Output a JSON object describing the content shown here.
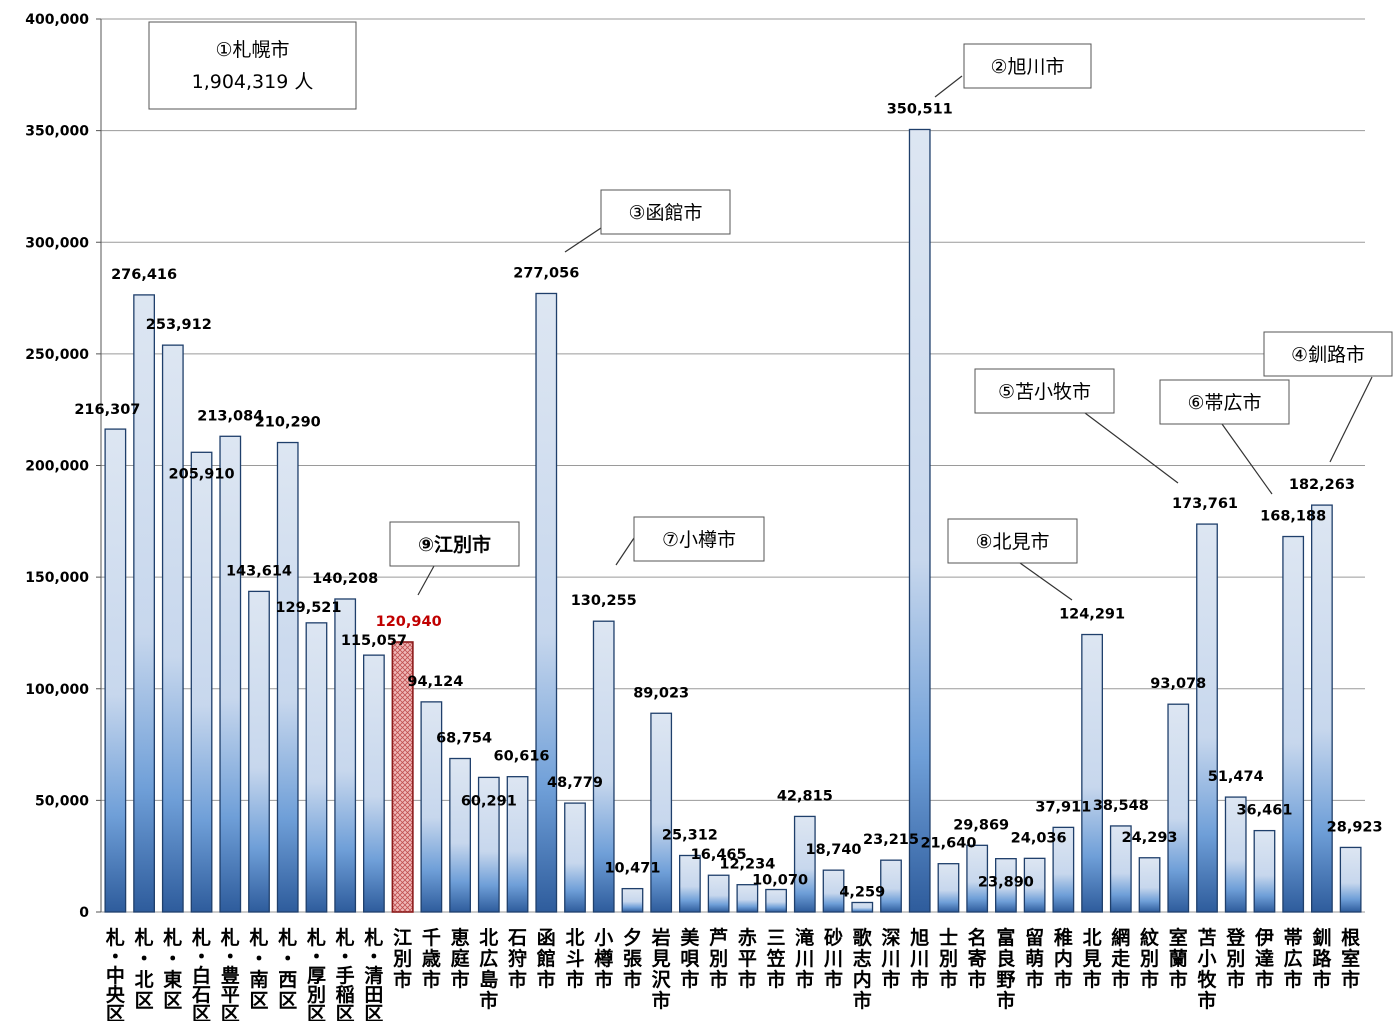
{
  "chart_data": {
    "type": "bar",
    "ylim": [
      0,
      400000
    ],
    "yticks": [
      "0",
      "50,000",
      "100,000",
      "150,000",
      "200,000",
      "250,000",
      "300,000",
      "350,000",
      "400,000"
    ],
    "grid": true,
    "colors": {
      "bar_top": "#dde6f2",
      "bar_bottom": "#2e5c9c",
      "bar_stroke": "#1f3f6b",
      "highlight_fill": "#e7a3a3",
      "highlight_stroke": "#8b1a1a",
      "highlight_label": "#c00000"
    },
    "categories": [
      "札・中央区",
      "札・北区",
      "札・東区",
      "札・白石区",
      "札・豊平区",
      "札・南区",
      "札・西区",
      "札・厚別区",
      "札・手稲区",
      "札・清田区",
      "江別市",
      "千歳市",
      "恵庭市",
      "北広島市",
      "石狩市",
      "函館市",
      "北斗市",
      "小樽市",
      "夕張市",
      "岩見沢市",
      "美唄市",
      "芦別市",
      "赤平市",
      "三笠市",
      "滝川市",
      "砂川市",
      "歌志内市",
      "深川市",
      "旭川市",
      "士別市",
      "名寄市",
      "富良野市",
      "留萌市",
      "稚内市",
      "北見市",
      "網走市",
      "紋別市",
      "室蘭市",
      "苫小牧市",
      "登別市",
      "伊達市",
      "帯広市",
      "釧路市",
      "根室市"
    ],
    "values": [
      216307,
      276416,
      253912,
      205910,
      213084,
      143614,
      210290,
      129521,
      140208,
      115057,
      120940,
      94124,
      68754,
      60291,
      60616,
      277056,
      48779,
      130255,
      10471,
      89023,
      25312,
      16465,
      12234,
      10070,
      42815,
      18740,
      4259,
      23215,
      350511,
      21640,
      29869,
      23890,
      24036,
      37911,
      124291,
      38548,
      24293,
      93078,
      173761,
      51474,
      36461,
      168188,
      182263,
      28923
    ],
    "value_labels": [
      "216,307",
      "276,416",
      "253,912",
      "205,910",
      "213,084",
      "143,614",
      "210,290",
      "129,521",
      "140,208",
      "115,057",
      "120,940",
      "94,124",
      "68,754",
      "60,291",
      "60,616",
      "277,056",
      "48,779",
      "130,255",
      "10,471",
      "89,023",
      "25,312",
      "16,465",
      "12,234",
      "10,070",
      "42,815",
      "18,740",
      "4,259",
      "23,215",
      "350,511",
      "21,640",
      "29,869",
      "23,890",
      "24,036",
      "37,911",
      "124,291",
      "38,548",
      "24,293",
      "93,078",
      "173,761",
      "51,474",
      "36,461",
      "168,188",
      "182,263",
      "28,923"
    ],
    "highlight_index": 10,
    "callouts": [
      {
        "text": "①札幌市",
        "text2": "1,904,319 人",
        "bold": false
      },
      {
        "text": "②旭川市",
        "bold": false
      },
      {
        "text": "③函館市",
        "bold": false
      },
      {
        "text": "④釧路市",
        "bold": false
      },
      {
        "text": "⑤苫小牧市",
        "bold": false
      },
      {
        "text": "⑥帯広市",
        "bold": false
      },
      {
        "text": "⑦小樽市",
        "bold": false
      },
      {
        "text": "⑧北見市",
        "bold": false
      },
      {
        "text": "⑨江別市",
        "bold": true
      }
    ]
  }
}
